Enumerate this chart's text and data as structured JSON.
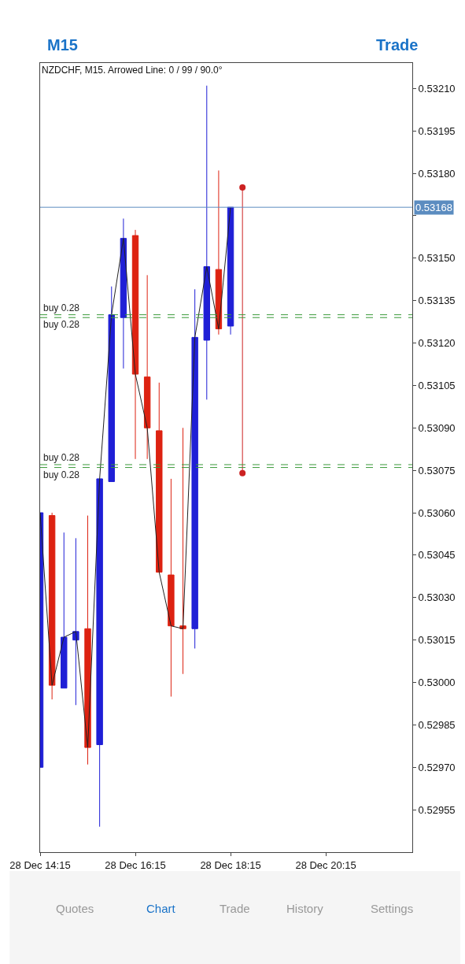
{
  "chart_data": {
    "type": "candlestick",
    "title": "NZDCHF, M15. Arrowed Line: 0 / 99 / 90.0°",
    "x": [
      "--12-28T14:15",
      "--12-28T14:30",
      "--12-28T14:45",
      "--12-28T15:00",
      "--12-28T15:15",
      "--12-28T15:30",
      "--12-28T15:45",
      "--12-28T16:00",
      "--12-28T16:15",
      "--12-28T16:30",
      "--12-28T16:45",
      "--12-28T17:00",
      "--12-28T17:15",
      "--12-28T17:30",
      "--12-28T17:45",
      "--12-28T18:00",
      "--12-28T18:15"
    ],
    "ohlc": [
      [
        0.5297,
        0.5306,
        0.5297,
        0.5306
      ],
      [
        0.53059,
        0.5306,
        0.52994,
        0.52999
      ],
      [
        0.52998,
        0.53053,
        0.52998,
        0.53016
      ],
      [
        0.53015,
        0.53051,
        0.52992,
        0.53018
      ],
      [
        0.53019,
        0.53059,
        0.52971,
        0.52977
      ],
      [
        0.52978,
        0.53072,
        0.52949,
        0.53072
      ],
      [
        0.53071,
        0.5314,
        0.53071,
        0.5313
      ],
      [
        0.53129,
        0.53164,
        0.53111,
        0.53157
      ],
      [
        0.53158,
        0.5316,
        0.53079,
        0.53109
      ],
      [
        0.53108,
        0.53144,
        0.53079,
        0.5309
      ],
      [
        0.53089,
        0.53106,
        0.53039,
        0.53039
      ],
      [
        0.53038,
        0.53072,
        0.52995,
        0.5302
      ],
      [
        0.5302,
        0.5309,
        0.53003,
        0.53019
      ],
      [
        0.53019,
        0.53139,
        0.53012,
        0.53122
      ],
      [
        0.53121,
        0.53211,
        0.531,
        0.53147
      ],
      [
        0.53146,
        0.53181,
        0.53123,
        0.53125
      ],
      [
        0.53126,
        0.53168,
        0.53123,
        0.53168
      ]
    ],
    "colors": [
      "#1f1fd6",
      "#dd2211",
      "#1f1fd6",
      "#1f1fd6",
      "#dd2211",
      "#1f1fd6",
      "#1f1fd6",
      "#1f1fd6",
      "#dd2211",
      "#dd2211",
      "#dd2211",
      "#dd2211",
      "#dd2211",
      "#1f1fd6",
      "#1f1fd6",
      "#dd2211",
      "#1f1fd6"
    ],
    "series": [
      {
        "type": "line",
        "color": "#222222",
        "values": [
          0.5306,
          0.52999,
          0.53016,
          0.53018,
          0.52977,
          0.53072,
          0.5313,
          0.53157,
          0.53109,
          0.5309,
          0.53039,
          0.5302,
          0.53019,
          0.53122,
          0.53147,
          0.53125,
          0.53168
        ]
      },
      {
        "type": "line",
        "color": "#cc2222",
        "marker": "circle",
        "x": [
          "--12-28T18:30",
          "--12-28T18:30"
        ],
        "values": [
          0.53074,
          0.53175
        ]
      }
    ],
    "ref_lines": [
      {
        "axis": "y",
        "value": 0.53168,
        "label": "0.53168",
        "color": "#5b8cc0",
        "line_style": "solid"
      },
      {
        "axis": "y",
        "value": 0.5313,
        "label": "buy 0.28",
        "color": "#3a9a3a",
        "line_style": "dashed"
      },
      {
        "axis": "y",
        "value": 0.53129,
        "label": "buy 0.28",
        "color": "#3a9a3a",
        "line_style": "dashed"
      },
      {
        "axis": "y",
        "value": 0.53077,
        "label": "buy 0.28",
        "color": "#3a9a3a",
        "line_style": "dashed"
      },
      {
        "axis": "y",
        "value": 0.53076,
        "label": "buy 0.28",
        "color": "#3a9a3a",
        "line_style": "dashed"
      }
    ],
    "xlim": [
      "--12-28T14:15",
      "--12-28T22:04"
    ],
    "xticks": [
      {
        "value": "--12-28T14:15",
        "label": "28 Dec 14:15"
      },
      {
        "value": "--12-28T16:15",
        "label": "28 Dec 16:15"
      },
      {
        "value": "--12-28T18:15",
        "label": "28 Dec 18:15"
      },
      {
        "value": "--12-28T20:15",
        "label": "28 Dec 20:15"
      }
    ],
    "ylim": [
      0.5294,
      0.53219
    ],
    "yticks": [
      {
        "value": 0.5321,
        "label": "0.53210"
      },
      0.53195,
      {
        "value": 0.5318,
        "label": "0.53180"
      },
      {
        "value": 0.53165,
        "label": null
      },
      {
        "value": 0.5315,
        "label": "0.53150"
      },
      0.53135,
      {
        "value": 0.5312,
        "label": "0.53120"
      },
      0.53105,
      {
        "value": 0.5309,
        "label": "0.53090"
      },
      0.53075,
      {
        "value": 0.5306,
        "label": "0.53060"
      },
      0.53045,
      {
        "value": 0.5303,
        "label": "0.53030"
      },
      0.53015,
      {
        "value": 0.53,
        "label": "0.53000"
      },
      0.52985,
      {
        "value": 0.5297,
        "label": "0.52970"
      },
      0.52955
    ],
    "annotations": [
      "M15",
      "Trade",
      "Quotes",
      "Chart",
      "Trade",
      "History",
      "Settings"
    ]
  }
}
